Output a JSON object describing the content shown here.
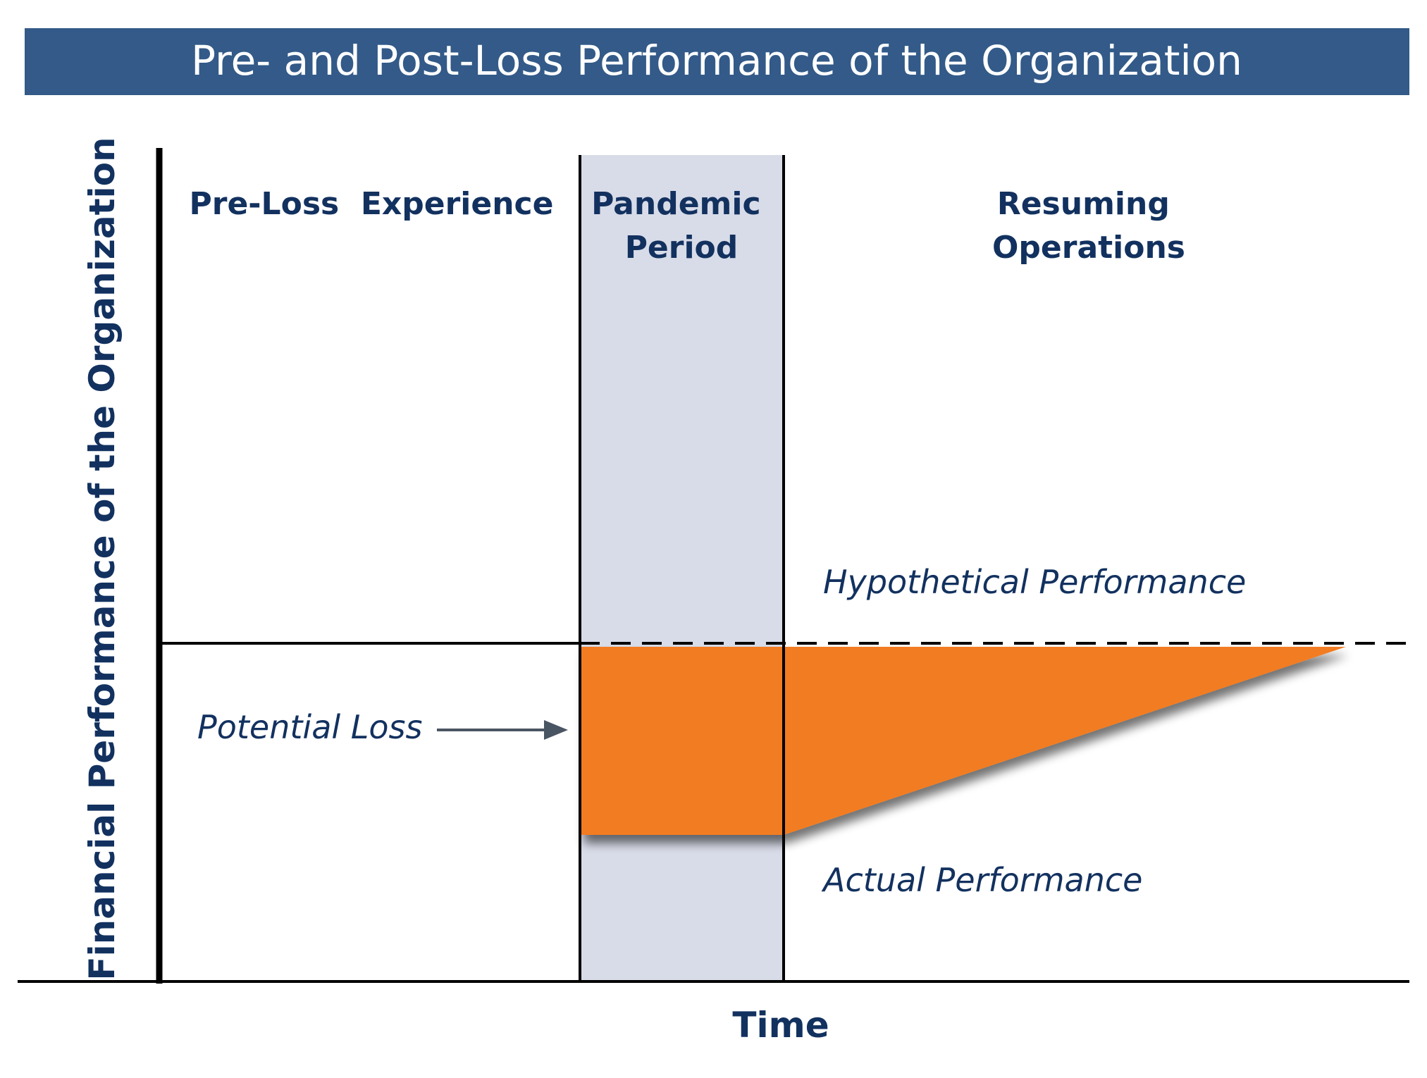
{
  "title": "Pre- and Post-Loss Performance of the Organization",
  "axes": {
    "y_label": "Financial Performance of the Organization",
    "x_label": "Time"
  },
  "phases": [
    {
      "id": "pre_loss",
      "label_lines": [
        "Pre-Loss  Experience"
      ]
    },
    {
      "id": "pandemic",
      "label_lines": [
        "Pandemic",
        "Period"
      ]
    },
    {
      "id": "resuming",
      "label_lines": [
        "Resuming",
        "Operations"
      ]
    }
  ],
  "annotations": {
    "hypothetical": "Hypothetical Performance",
    "actual": "Actual Performance",
    "potential_loss": "Potential Loss"
  },
  "colors": {
    "title_bar": "#335a88",
    "title_text": "#ffffff",
    "navy_text": "#12315f",
    "pandemic_band": "#d8dce8",
    "loss_area": "#f27b22",
    "axis": "#000000",
    "arrow": "#4a5563"
  }
}
